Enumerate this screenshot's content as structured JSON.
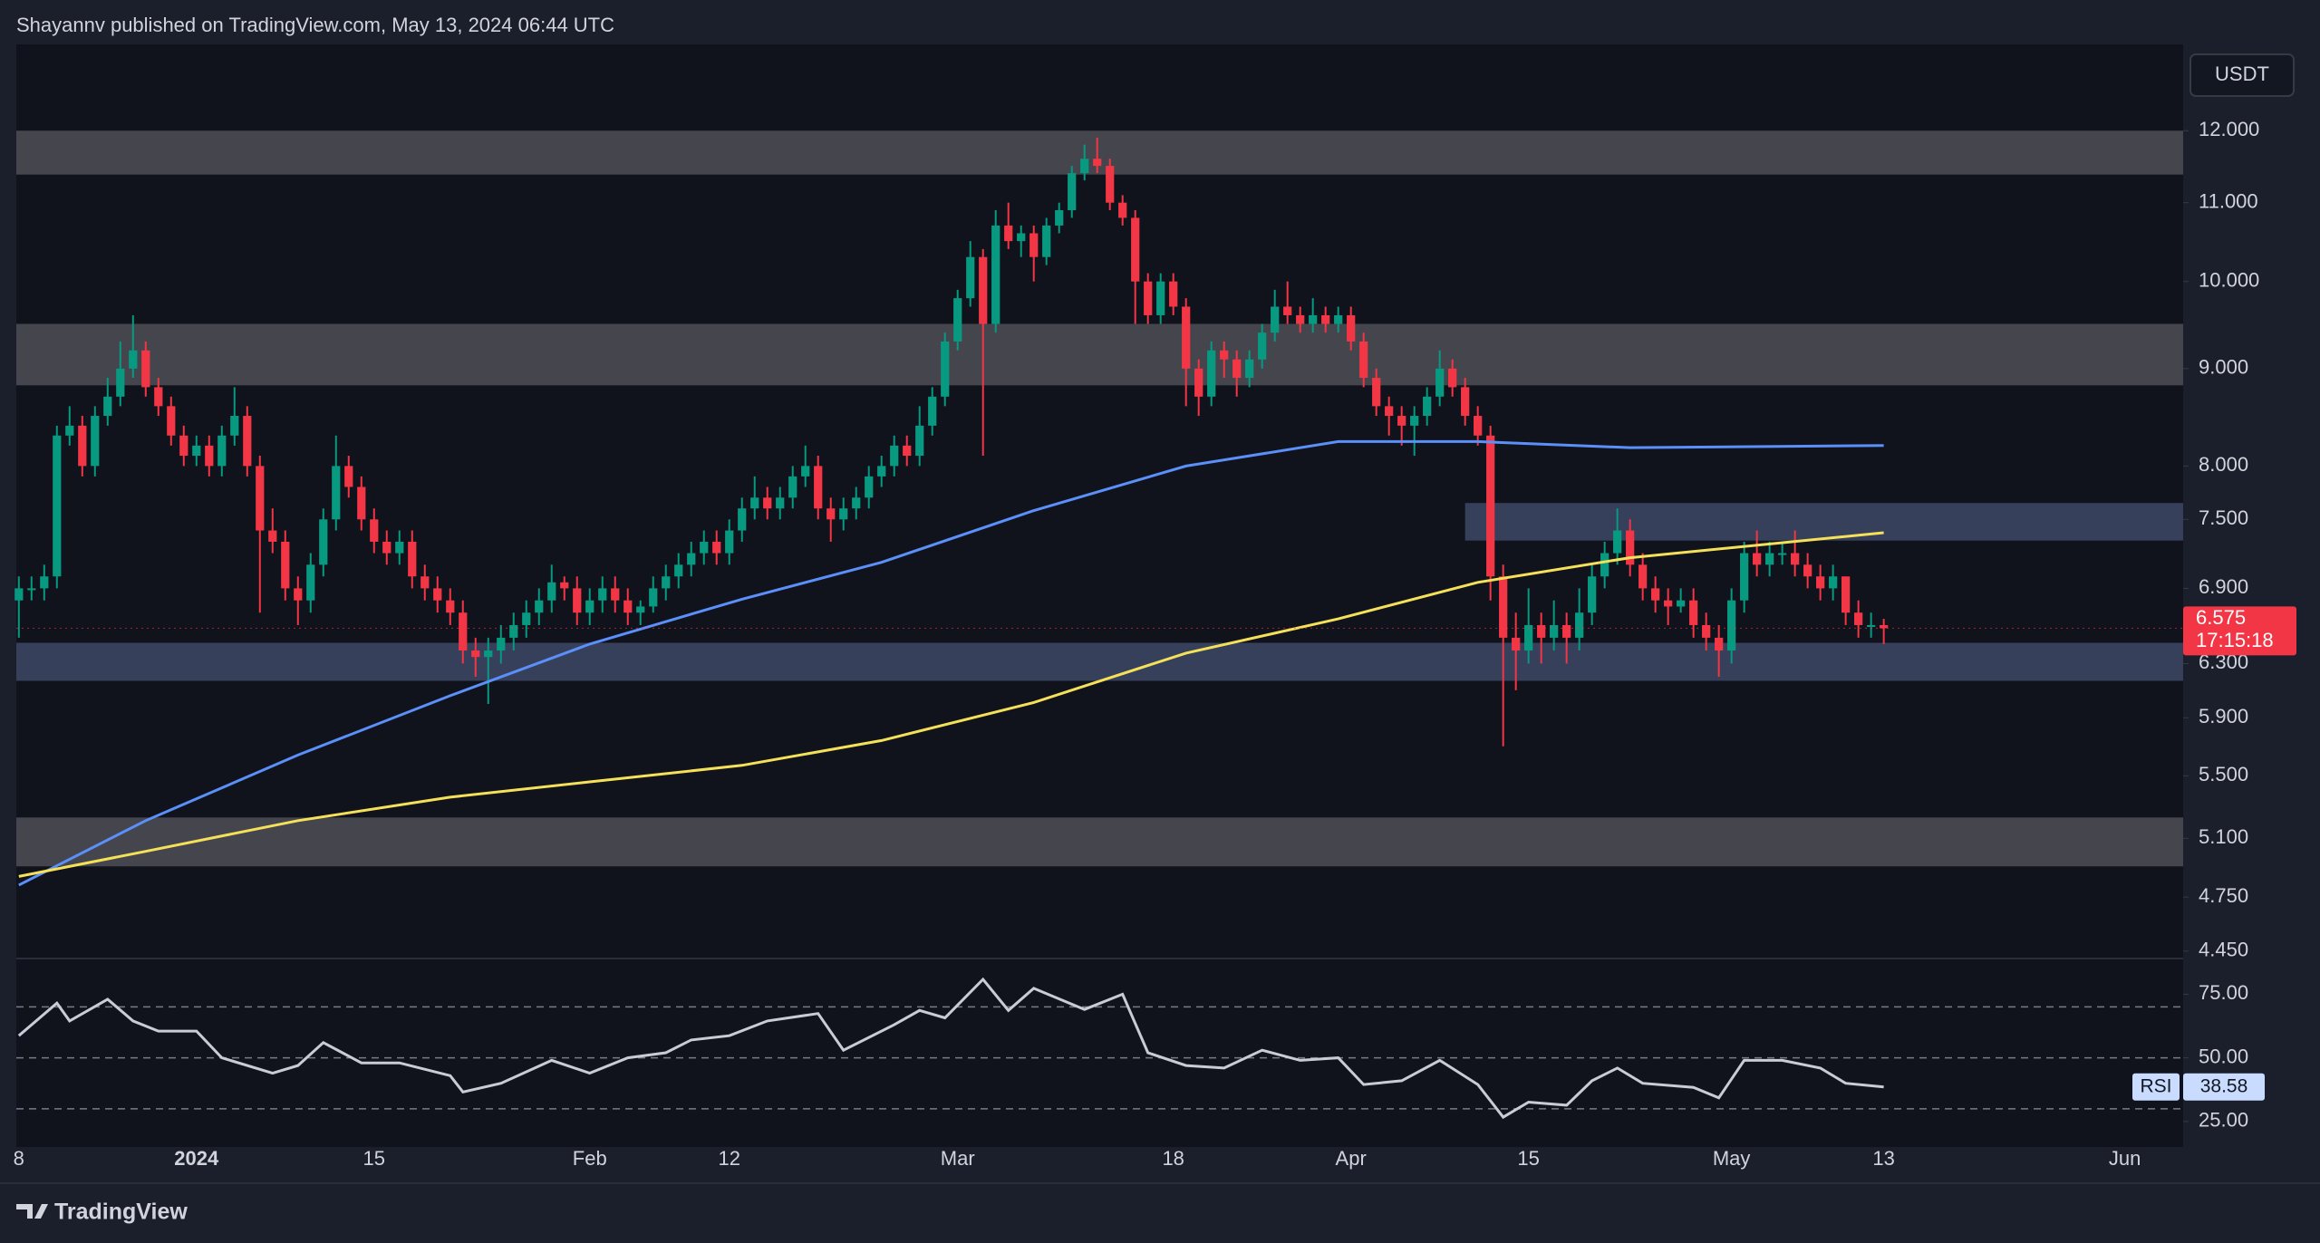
{
  "header": "Shayannv published on TradingView.com, May 13, 2024 06:44 UTC",
  "footer": "TradingView",
  "chart_data": {
    "type": "candlestick",
    "currency": "USDT",
    "log_scale": true,
    "up_color": "#089981",
    "down_color": "#f23645",
    "xlim": [
      -0.2,
      170.6
    ],
    "xticks": [
      {
        "value": 0,
        "label": "8"
      },
      {
        "value": 14,
        "label": "2024"
      },
      {
        "value": 28,
        "label": "15"
      },
      {
        "value": 45,
        "label": "Feb"
      },
      {
        "value": 56,
        "label": "12"
      },
      {
        "value": 74,
        "label": "Mar"
      },
      {
        "value": 91,
        "label": "18"
      },
      {
        "value": 105,
        "label": "Apr"
      },
      {
        "value": 119,
        "label": "15"
      },
      {
        "value": 135,
        "label": "May"
      },
      {
        "value": 147,
        "label": "13"
      },
      {
        "value": 166,
        "label": "Jun"
      }
    ],
    "ylim": [
      4.41,
      13.32
    ],
    "yticks": [
      {
        "value": 12,
        "label": "12.000"
      },
      {
        "value": 11,
        "label": "11.000"
      },
      {
        "value": 10,
        "label": "10.000"
      },
      {
        "value": 9,
        "label": "9.000"
      },
      {
        "value": 8,
        "label": "8.000"
      },
      {
        "value": 7.5,
        "label": "7.500"
      },
      {
        "value": 6.9,
        "label": "6.900"
      },
      {
        "value": 6.3,
        "label": "6.300"
      },
      {
        "value": 5.9,
        "label": "5.900"
      },
      {
        "value": 5.5,
        "label": "5.500"
      },
      {
        "value": 5.1,
        "label": "5.100"
      },
      {
        "value": 4.75,
        "label": "4.750"
      },
      {
        "value": 4.45,
        "label": "4.450"
      }
    ],
    "zones": [
      {
        "low": 11.38,
        "high": 12.0,
        "color": "#4b4d53"
      },
      {
        "low": 8.82,
        "high": 9.5,
        "color": "#4b4d53"
      },
      {
        "low": 7.31,
        "high": 7.65,
        "color": "#3b4663",
        "start": 114
      },
      {
        "low": 6.17,
        "high": 6.46,
        "color": "#3b4663"
      },
      {
        "low": 4.93,
        "high": 5.23,
        "color": "#4b4d53"
      }
    ],
    "candles": [
      [
        6.8,
        7.0,
        6.5,
        6.9
      ],
      [
        6.9,
        7.0,
        6.8,
        6.9
      ],
      [
        6.9,
        7.1,
        6.8,
        7.0
      ],
      [
        7.0,
        8.4,
        6.9,
        8.3
      ],
      [
        8.3,
        8.6,
        8.2,
        8.4
      ],
      [
        8.4,
        8.5,
        7.9,
        8.0
      ],
      [
        8.0,
        8.6,
        7.9,
        8.5
      ],
      [
        8.5,
        8.9,
        8.4,
        8.7
      ],
      [
        8.7,
        9.3,
        8.6,
        9.0
      ],
      [
        9.0,
        9.6,
        8.9,
        9.2
      ],
      [
        9.2,
        9.3,
        8.7,
        8.8
      ],
      [
        8.8,
        8.9,
        8.5,
        8.6
      ],
      [
        8.6,
        8.7,
        8.2,
        8.3
      ],
      [
        8.3,
        8.4,
        8.0,
        8.1
      ],
      [
        8.1,
        8.3,
        8.0,
        8.2
      ],
      [
        8.2,
        8.3,
        7.9,
        8.0
      ],
      [
        8.0,
        8.4,
        7.9,
        8.3
      ],
      [
        8.3,
        8.8,
        8.2,
        8.5
      ],
      [
        8.5,
        8.6,
        7.9,
        8.0
      ],
      [
        8.0,
        8.1,
        6.7,
        7.4
      ],
      [
        7.4,
        7.6,
        7.2,
        7.3
      ],
      [
        7.3,
        7.4,
        6.8,
        6.9
      ],
      [
        6.9,
        7.0,
        6.6,
        6.8
      ],
      [
        6.8,
        7.2,
        6.7,
        7.1
      ],
      [
        7.1,
        7.6,
        7.0,
        7.5
      ],
      [
        7.5,
        8.3,
        7.4,
        8.0
      ],
      [
        8.0,
        8.1,
        7.7,
        7.8
      ],
      [
        7.8,
        7.9,
        7.4,
        7.5
      ],
      [
        7.5,
        7.6,
        7.2,
        7.3
      ],
      [
        7.3,
        7.4,
        7.1,
        7.2
      ],
      [
        7.2,
        7.4,
        7.1,
        7.3
      ],
      [
        7.3,
        7.4,
        6.9,
        7.0
      ],
      [
        7.0,
        7.1,
        6.8,
        6.9
      ],
      [
        6.9,
        7.0,
        6.7,
        6.8
      ],
      [
        6.8,
        6.9,
        6.6,
        6.7
      ],
      [
        6.7,
        6.8,
        6.3,
        6.4
      ],
      [
        6.4,
        6.5,
        6.2,
        6.35
      ],
      [
        6.35,
        6.5,
        6.0,
        6.4
      ],
      [
        6.4,
        6.6,
        6.3,
        6.5
      ],
      [
        6.5,
        6.7,
        6.4,
        6.6
      ],
      [
        6.6,
        6.8,
        6.5,
        6.7
      ],
      [
        6.7,
        6.9,
        6.6,
        6.8
      ],
      [
        6.8,
        7.1,
        6.7,
        6.95
      ],
      [
        6.95,
        7.0,
        6.8,
        6.9
      ],
      [
        6.9,
        7.0,
        6.6,
        6.7
      ],
      [
        6.7,
        6.9,
        6.6,
        6.8
      ],
      [
        6.8,
        7.0,
        6.7,
        6.9
      ],
      [
        6.9,
        7.0,
        6.7,
        6.8
      ],
      [
        6.8,
        6.9,
        6.6,
        6.7
      ],
      [
        6.7,
        6.8,
        6.6,
        6.75
      ],
      [
        6.75,
        7.0,
        6.7,
        6.9
      ],
      [
        6.9,
        7.1,
        6.8,
        7.0
      ],
      [
        7.0,
        7.2,
        6.9,
        7.1
      ],
      [
        7.1,
        7.3,
        7.0,
        7.2
      ],
      [
        7.2,
        7.4,
        7.1,
        7.3
      ],
      [
        7.3,
        7.4,
        7.1,
        7.2
      ],
      [
        7.2,
        7.5,
        7.1,
        7.4
      ],
      [
        7.4,
        7.7,
        7.3,
        7.6
      ],
      [
        7.6,
        7.9,
        7.5,
        7.7
      ],
      [
        7.7,
        7.8,
        7.5,
        7.6
      ],
      [
        7.6,
        7.8,
        7.5,
        7.7
      ],
      [
        7.7,
        8.0,
        7.6,
        7.9
      ],
      [
        7.9,
        8.2,
        7.8,
        8.0
      ],
      [
        8.0,
        8.1,
        7.5,
        7.6
      ],
      [
        7.6,
        7.7,
        7.3,
        7.5
      ],
      [
        7.5,
        7.7,
        7.4,
        7.6
      ],
      [
        7.6,
        7.8,
        7.5,
        7.7
      ],
      [
        7.7,
        8.0,
        7.6,
        7.9
      ],
      [
        7.9,
        8.1,
        7.8,
        8.0
      ],
      [
        8.0,
        8.3,
        7.9,
        8.2
      ],
      [
        8.2,
        8.3,
        8.0,
        8.1
      ],
      [
        8.1,
        8.6,
        8.0,
        8.4
      ],
      [
        8.4,
        8.8,
        8.3,
        8.7
      ],
      [
        8.7,
        9.4,
        8.6,
        9.3
      ],
      [
        9.3,
        9.9,
        9.2,
        9.8
      ],
      [
        9.8,
        10.5,
        9.7,
        10.3
      ],
      [
        10.3,
        10.4,
        8.1,
        9.5
      ],
      [
        9.5,
        10.9,
        9.4,
        10.7
      ],
      [
        10.7,
        11.0,
        10.4,
        10.5
      ],
      [
        10.5,
        10.7,
        10.3,
        10.6
      ],
      [
        10.6,
        10.7,
        10.0,
        10.3
      ],
      [
        10.3,
        10.8,
        10.2,
        10.7
      ],
      [
        10.7,
        11.0,
        10.6,
        10.9
      ],
      [
        10.9,
        11.5,
        10.8,
        11.4
      ],
      [
        11.4,
        11.8,
        11.3,
        11.6
      ],
      [
        11.6,
        11.9,
        11.4,
        11.5
      ],
      [
        11.5,
        11.6,
        10.9,
        11.0
      ],
      [
        11.0,
        11.1,
        10.7,
        10.8
      ],
      [
        10.8,
        10.9,
        9.5,
        10.0
      ],
      [
        10.0,
        10.1,
        9.5,
        9.6
      ],
      [
        9.6,
        10.1,
        9.5,
        10.0
      ],
      [
        10.0,
        10.1,
        9.6,
        9.7
      ],
      [
        9.7,
        9.8,
        8.6,
        9.0
      ],
      [
        9.0,
        9.1,
        8.5,
        8.7
      ],
      [
        8.7,
        9.3,
        8.6,
        9.2
      ],
      [
        9.2,
        9.3,
        8.9,
        9.1
      ],
      [
        9.1,
        9.2,
        8.7,
        8.9
      ],
      [
        8.9,
        9.2,
        8.8,
        9.1
      ],
      [
        9.1,
        9.5,
        9.0,
        9.4
      ],
      [
        9.4,
        9.9,
        9.3,
        9.7
      ],
      [
        9.7,
        10.0,
        9.5,
        9.6
      ],
      [
        9.6,
        9.7,
        9.4,
        9.5
      ],
      [
        9.5,
        9.8,
        9.4,
        9.6
      ],
      [
        9.6,
        9.7,
        9.4,
        9.5
      ],
      [
        9.5,
        9.7,
        9.4,
        9.6
      ],
      [
        9.6,
        9.7,
        9.2,
        9.3
      ],
      [
        9.3,
        9.4,
        8.8,
        8.9
      ],
      [
        8.9,
        9.0,
        8.5,
        8.6
      ],
      [
        8.6,
        8.7,
        8.3,
        8.5
      ],
      [
        8.5,
        8.6,
        8.2,
        8.4
      ],
      [
        8.4,
        8.6,
        8.1,
        8.5
      ],
      [
        8.5,
        8.8,
        8.4,
        8.7
      ],
      [
        8.7,
        9.2,
        8.6,
        9.0
      ],
      [
        9.0,
        9.1,
        8.7,
        8.8
      ],
      [
        8.8,
        8.9,
        8.4,
        8.5
      ],
      [
        8.5,
        8.6,
        8.2,
        8.3
      ],
      [
        8.3,
        8.4,
        6.8,
        7.0
      ],
      [
        7.0,
        7.1,
        5.7,
        6.5
      ],
      [
        6.5,
        6.7,
        6.1,
        6.4
      ],
      [
        6.4,
        6.9,
        6.3,
        6.6
      ],
      [
        6.6,
        6.7,
        6.3,
        6.5
      ],
      [
        6.5,
        6.8,
        6.4,
        6.6
      ],
      [
        6.6,
        6.7,
        6.3,
        6.5
      ],
      [
        6.5,
        6.9,
        6.4,
        6.7
      ],
      [
        6.7,
        7.1,
        6.6,
        7.0
      ],
      [
        7.0,
        7.3,
        6.9,
        7.2
      ],
      [
        7.2,
        7.6,
        7.1,
        7.4
      ],
      [
        7.4,
        7.5,
        7.0,
        7.1
      ],
      [
        7.1,
        7.2,
        6.8,
        6.9
      ],
      [
        6.9,
        7.0,
        6.7,
        6.8
      ],
      [
        6.8,
        6.9,
        6.6,
        6.75
      ],
      [
        6.75,
        6.9,
        6.7,
        6.8
      ],
      [
        6.8,
        6.9,
        6.5,
        6.6
      ],
      [
        6.6,
        6.7,
        6.4,
        6.5
      ],
      [
        6.5,
        6.6,
        6.2,
        6.4
      ],
      [
        6.4,
        6.9,
        6.3,
        6.8
      ],
      [
        6.8,
        7.3,
        6.7,
        7.2
      ],
      [
        7.2,
        7.4,
        7.0,
        7.1
      ],
      [
        7.1,
        7.3,
        7.0,
        7.2
      ],
      [
        7.2,
        7.3,
        7.1,
        7.2
      ],
      [
        7.2,
        7.4,
        7.0,
        7.1
      ],
      [
        7.1,
        7.2,
        6.9,
        7.0
      ],
      [
        7.0,
        7.1,
        6.8,
        6.9
      ],
      [
        6.9,
        7.1,
        6.8,
        7.0
      ],
      [
        7.0,
        7.0,
        6.6,
        6.7
      ],
      [
        6.7,
        6.8,
        6.5,
        6.6
      ],
      [
        6.6,
        6.7,
        6.5,
        6.6
      ],
      [
        6.6,
        6.65,
        6.45,
        6.575
      ]
    ],
    "series": [
      {
        "color": "#5b8ff9",
        "x": [
          0,
          10,
          22,
          34,
          45,
          57,
          68,
          80,
          92,
          104,
          115,
          127,
          147
        ],
        "values": [
          4.82,
          5.21,
          5.64,
          6.06,
          6.45,
          6.81,
          7.12,
          7.58,
          8.0,
          8.24,
          8.24,
          8.18,
          8.2
        ]
      },
      {
        "color": "#f5e05a",
        "x": [
          0,
          10,
          22,
          34,
          45,
          57,
          68,
          80,
          92,
          104,
          115,
          127,
          147
        ],
        "values": [
          4.87,
          5.02,
          5.21,
          5.36,
          5.46,
          5.57,
          5.74,
          6.01,
          6.38,
          6.65,
          6.95,
          7.16,
          7.38
        ]
      }
    ],
    "countdown": "17:15:18",
    "rsi": {
      "label": "RSI",
      "color": "#c8ccd6",
      "ylim": [
        15,
        89
      ],
      "yticks": [
        {
          "value": 75,
          "label": "75.00"
        },
        {
          "value": 50,
          "label": "50.00"
        },
        {
          "value": 25,
          "label": "25.00"
        }
      ],
      "bands": [
        70,
        50,
        30
      ],
      "x": [
        0,
        3,
        4,
        7,
        9,
        11,
        14,
        16,
        20,
        22,
        24,
        27,
        30,
        34,
        35,
        38,
        42,
        45,
        48,
        51,
        53,
        56,
        59,
        63,
        65,
        69,
        71,
        73,
        76,
        78,
        80,
        84,
        87,
        89,
        92,
        95,
        98,
        101,
        104,
        106,
        109,
        112,
        115,
        117,
        119,
        122,
        124,
        126,
        128,
        132,
        134,
        136,
        139,
        142,
        144,
        147
      ],
      "values": [
        58.7,
        71.5,
        64.5,
        73,
        64.5,
        60.5,
        60.5,
        50,
        44,
        47,
        56,
        48,
        48,
        43,
        36.6,
        40,
        49,
        44,
        50,
        52,
        57,
        58.7,
        64.5,
        67.4,
        53,
        63,
        68.6,
        65.7,
        80.8,
        68.6,
        77.3,
        69,
        75,
        52,
        47,
        46,
        53,
        49,
        50,
        39.5,
        41,
        49,
        39.5,
        26.7,
        32.6,
        31.4,
        41,
        46,
        40,
        38.4,
        34.3,
        49,
        49,
        46,
        40,
        38.58
      ]
    }
  }
}
